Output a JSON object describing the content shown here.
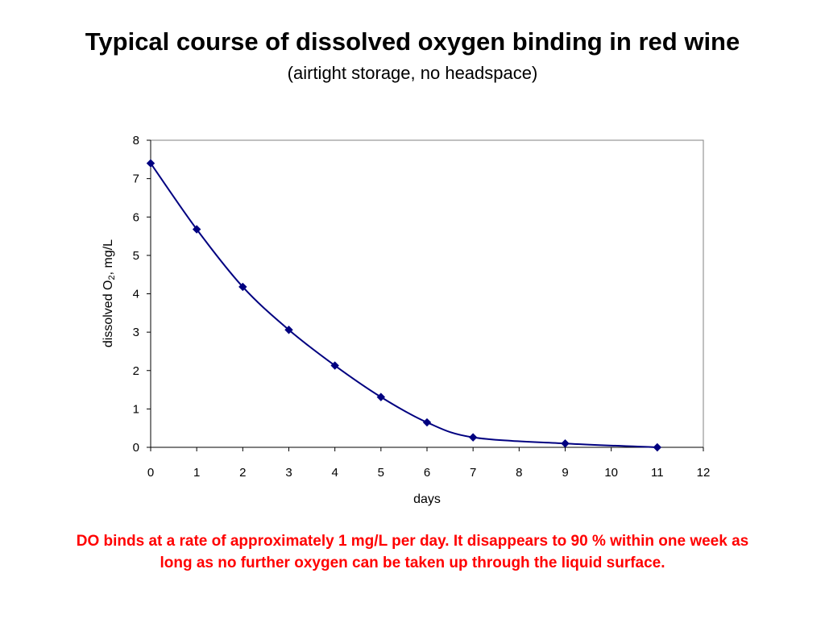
{
  "slide": {
    "title": "Typical course of dissolved oxygen binding in red wine",
    "subtitle": "(airtight storage, no headspace)",
    "note_line1": "DO binds at a rate of approximately 1 mg/L per day. It disappears to 90 % within one week as",
    "note_line2": "long as no further oxygen can be taken up through the liquid surface."
  },
  "colors": {
    "series": "#000080",
    "note": "#ff0000",
    "plot_border": "#808080"
  },
  "chart_data": {
    "type": "line",
    "xlabel": "days",
    "ylabel": "dissolved O",
    "ylabel_subscript": "2",
    "ylabel_suffix": ", mg/L",
    "xlim": [
      0,
      12
    ],
    "ylim": [
      0,
      8
    ],
    "xticks": [
      0,
      1,
      2,
      3,
      4,
      5,
      6,
      7,
      8,
      9,
      10,
      11,
      12
    ],
    "yticks": [
      0,
      1,
      2,
      3,
      4,
      5,
      6,
      7,
      8
    ],
    "grid": false,
    "smooth": true,
    "marker": "diamond",
    "series": [
      {
        "x": [
          0,
          1,
          2,
          3,
          4,
          5,
          6,
          7,
          9,
          11
        ],
        "y": [
          7.4,
          5.68,
          4.18,
          3.06,
          2.13,
          1.31,
          0.65,
          0.26,
          0.1,
          0.0
        ]
      }
    ]
  }
}
